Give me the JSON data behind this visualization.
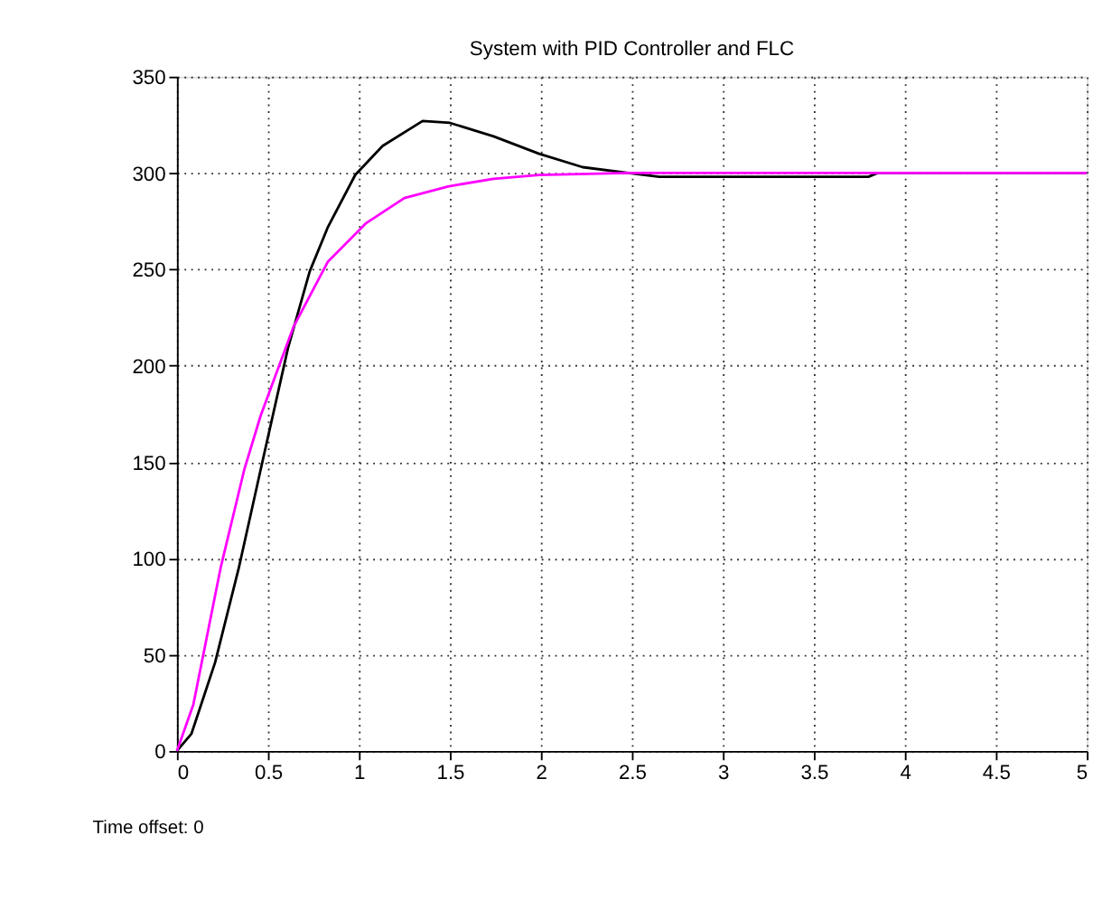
{
  "chart_data": {
    "type": "line",
    "title": "System with PID Controller and FLC",
    "series": [
      {
        "color": "#000000",
        "x": [
          0,
          0.08,
          0.21,
          0.34,
          0.46,
          0.61,
          0.73,
          0.83,
          0.98,
          1.13,
          1.35,
          1.5,
          1.74,
          1.99,
          2.23,
          2.48,
          2.65,
          3.0,
          3.4,
          3.8,
          3.85,
          4.5,
          5
        ],
        "values": [
          0,
          9,
          46,
          95,
          146,
          209,
          249,
          272,
          299,
          314,
          327,
          326,
          319,
          310,
          303,
          300,
          298,
          298,
          298,
          298,
          300,
          300,
          300
        ]
      },
      {
        "color": "#ff00ff",
        "x": [
          0,
          0.09,
          0.24,
          0.37,
          0.46,
          0.64,
          0.83,
          1.04,
          1.25,
          1.49,
          1.74,
          1.99,
          2.48,
          3.0,
          4.0,
          5
        ],
        "values": [
          0,
          24,
          95,
          146,
          174,
          220,
          254,
          274,
          287,
          293,
          297,
          299,
          300,
          300,
          300,
          300
        ]
      }
    ],
    "xlim": [
      0,
      5
    ],
    "xticks": [
      0,
      0.5,
      1,
      1.5,
      2,
      2.5,
      3,
      3.5,
      4,
      4.5,
      5
    ],
    "ylim": [
      0,
      350
    ],
    "yticks": [
      0,
      50,
      100,
      150,
      200,
      250,
      300,
      350
    ],
    "grid": true,
    "annotations": [
      "Time offset:  0"
    ]
  }
}
